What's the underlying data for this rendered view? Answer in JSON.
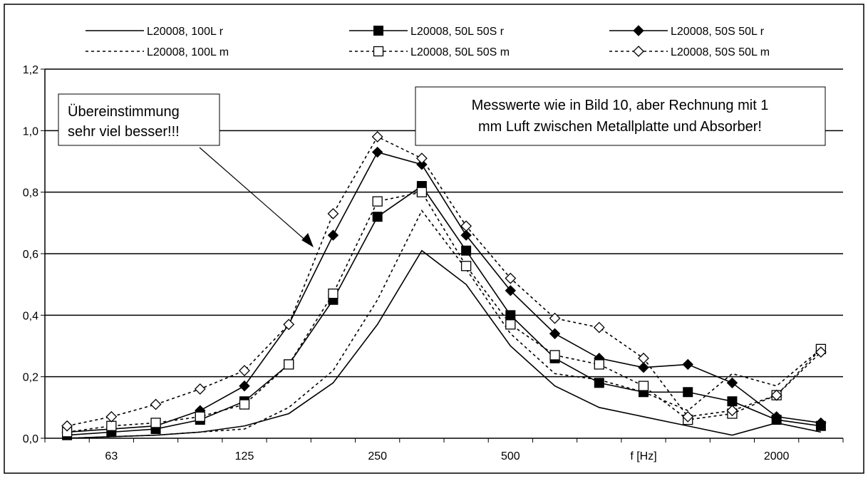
{
  "chart_data": {
    "type": "line",
    "categories": [
      "",
      "63",
      "",
      "",
      "125",
      "",
      "",
      "250",
      "",
      "",
      "500",
      "",
      "",
      "f [Hz]",
      "",
      "",
      "2000",
      ""
    ],
    "ylim": [
      0,
      1.2
    ],
    "yticks": [
      "0,0",
      "0,2",
      "0,4",
      "0,6",
      "0,8",
      "1,0",
      "1,2"
    ],
    "grid": true,
    "legend_position": "top",
    "series": [
      {
        "name": "L20008, 100L r",
        "style": "solid",
        "marker": "none",
        "values": [
          0.0,
          0.005,
          0.01,
          0.02,
          0.04,
          0.08,
          0.18,
          0.37,
          0.61,
          0.5,
          0.3,
          0.17,
          0.1,
          0.07,
          0.04,
          0.01,
          0.05,
          0.02
        ]
      },
      {
        "name": "L20008, 50L 50S r",
        "style": "solid",
        "marker": "filled-square",
        "values": [
          0.01,
          0.02,
          0.03,
          0.06,
          0.12,
          0.24,
          0.45,
          0.72,
          0.82,
          0.61,
          0.4,
          0.26,
          0.18,
          0.15,
          0.15,
          0.12,
          0.06,
          0.04
        ]
      },
      {
        "name": "L20008, 50S 50L r",
        "style": "solid",
        "marker": "filled-diamond",
        "values": [
          0.02,
          0.03,
          0.04,
          0.09,
          0.17,
          0.37,
          0.66,
          0.93,
          0.89,
          0.66,
          0.48,
          0.34,
          0.26,
          0.23,
          0.24,
          0.18,
          0.07,
          0.05
        ]
      },
      {
        "name": "L20008, 100L m",
        "style": "dashed",
        "marker": "none",
        "values": [
          0.0,
          0.005,
          0.01,
          0.02,
          0.03,
          0.1,
          0.22,
          0.45,
          0.74,
          0.55,
          0.34,
          0.21,
          0.19,
          0.15,
          0.09,
          0.21,
          0.17,
          0.29
        ]
      },
      {
        "name": "L20008, 50L 50S m",
        "style": "dashed",
        "marker": "open-square",
        "values": [
          0.02,
          0.04,
          0.05,
          0.07,
          0.11,
          0.24,
          0.47,
          0.77,
          0.8,
          0.56,
          0.37,
          0.27,
          0.24,
          0.17,
          0.06,
          0.08,
          0.14,
          0.29
        ]
      },
      {
        "name": "L20008, 50S 50L m",
        "style": "dashed",
        "marker": "open-diamond",
        "values": [
          0.04,
          0.07,
          0.11,
          0.16,
          0.22,
          0.37,
          0.73,
          0.98,
          0.91,
          0.69,
          0.52,
          0.39,
          0.36,
          0.26,
          0.07,
          0.09,
          0.14,
          0.28
        ]
      }
    ],
    "annotations": [
      {
        "id": "left",
        "lines": [
          "Übereinstimmung",
          "sehr viel besser!!!"
        ]
      },
      {
        "id": "right",
        "lines": [
          "Messwerte wie in Bild 10, aber Rechnung mit 1",
          "mm Luft zwischen Metallplatte und Absorber!"
        ]
      }
    ]
  }
}
